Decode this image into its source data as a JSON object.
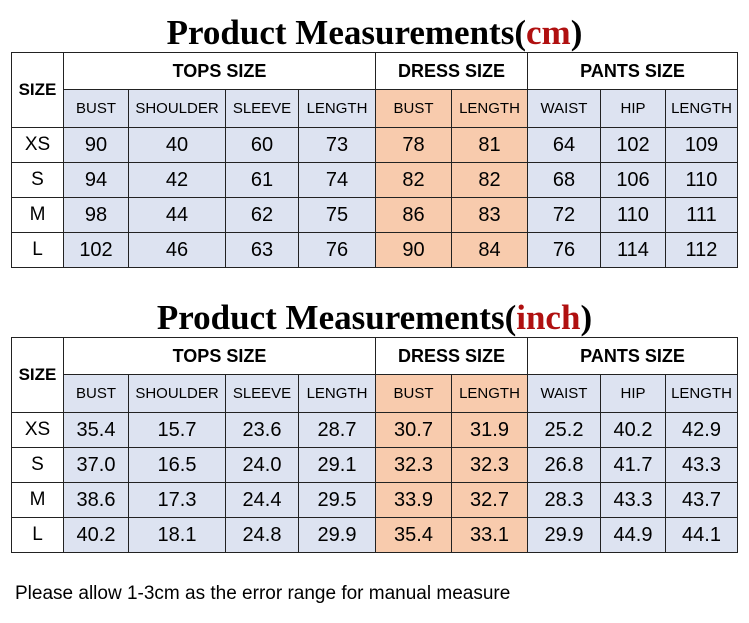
{
  "tables": [
    {
      "title": {
        "prefix": "Product Measurements(",
        "unit": "cm",
        "suffix": ")"
      },
      "size_header": "SIZE",
      "groups": [
        {
          "label": "TOPS SIZE",
          "columns": [
            "BUST",
            "SHOULDER",
            "SLEEVE",
            "LENGTH"
          ]
        },
        {
          "label": "DRESS SIZE",
          "columns": [
            "BUST",
            "LENGTH"
          ]
        },
        {
          "label": "PANTS SIZE",
          "columns": [
            "WAIST",
            "HIP",
            "LENGTH"
          ]
        }
      ],
      "rows": [
        {
          "size": "XS",
          "cells": [
            "90",
            "40",
            "60",
            "73",
            "78",
            "81",
            "64",
            "102",
            "109"
          ]
        },
        {
          "size": "S",
          "cells": [
            "94",
            "42",
            "61",
            "74",
            "82",
            "82",
            "68",
            "106",
            "110"
          ]
        },
        {
          "size": "M",
          "cells": [
            "98",
            "44",
            "62",
            "75",
            "86",
            "83",
            "72",
            "110",
            "111"
          ]
        },
        {
          "size": "L",
          "cells": [
            "102",
            "46",
            "63",
            "76",
            "90",
            "84",
            "76",
            "114",
            "112"
          ]
        }
      ]
    },
    {
      "title": {
        "prefix": "Product Measurements(",
        "unit": "inch",
        "suffix": ")"
      },
      "size_header": "SIZE",
      "groups": [
        {
          "label": "TOPS SIZE",
          "columns": [
            "BUST",
            "SHOULDER",
            "SLEEVE",
            "LENGTH"
          ]
        },
        {
          "label": "DRESS SIZE",
          "columns": [
            "BUST",
            "LENGTH"
          ]
        },
        {
          "label": "PANTS SIZE",
          "columns": [
            "WAIST",
            "HIP",
            "LENGTH"
          ]
        }
      ],
      "rows": [
        {
          "size": "XS",
          "cells": [
            "35.4",
            "15.7",
            "23.6",
            "28.7",
            "30.7",
            "31.9",
            "25.2",
            "40.2",
            "42.9"
          ]
        },
        {
          "size": "S",
          "cells": [
            "37.0",
            "16.5",
            "24.0",
            "29.1",
            "32.3",
            "32.3",
            "26.8",
            "41.7",
            "43.3"
          ]
        },
        {
          "size": "M",
          "cells": [
            "38.6",
            "17.3",
            "24.4",
            "29.5",
            "33.9",
            "32.7",
            "28.3",
            "43.3",
            "43.7"
          ]
        },
        {
          "size": "L",
          "cells": [
            "40.2",
            "18.1",
            "24.8",
            "29.9",
            "35.4",
            "33.1",
            "29.9",
            "44.9",
            "44.1"
          ]
        }
      ]
    }
  ],
  "note": "Please allow 1-3cm as the error range for manual measure"
}
